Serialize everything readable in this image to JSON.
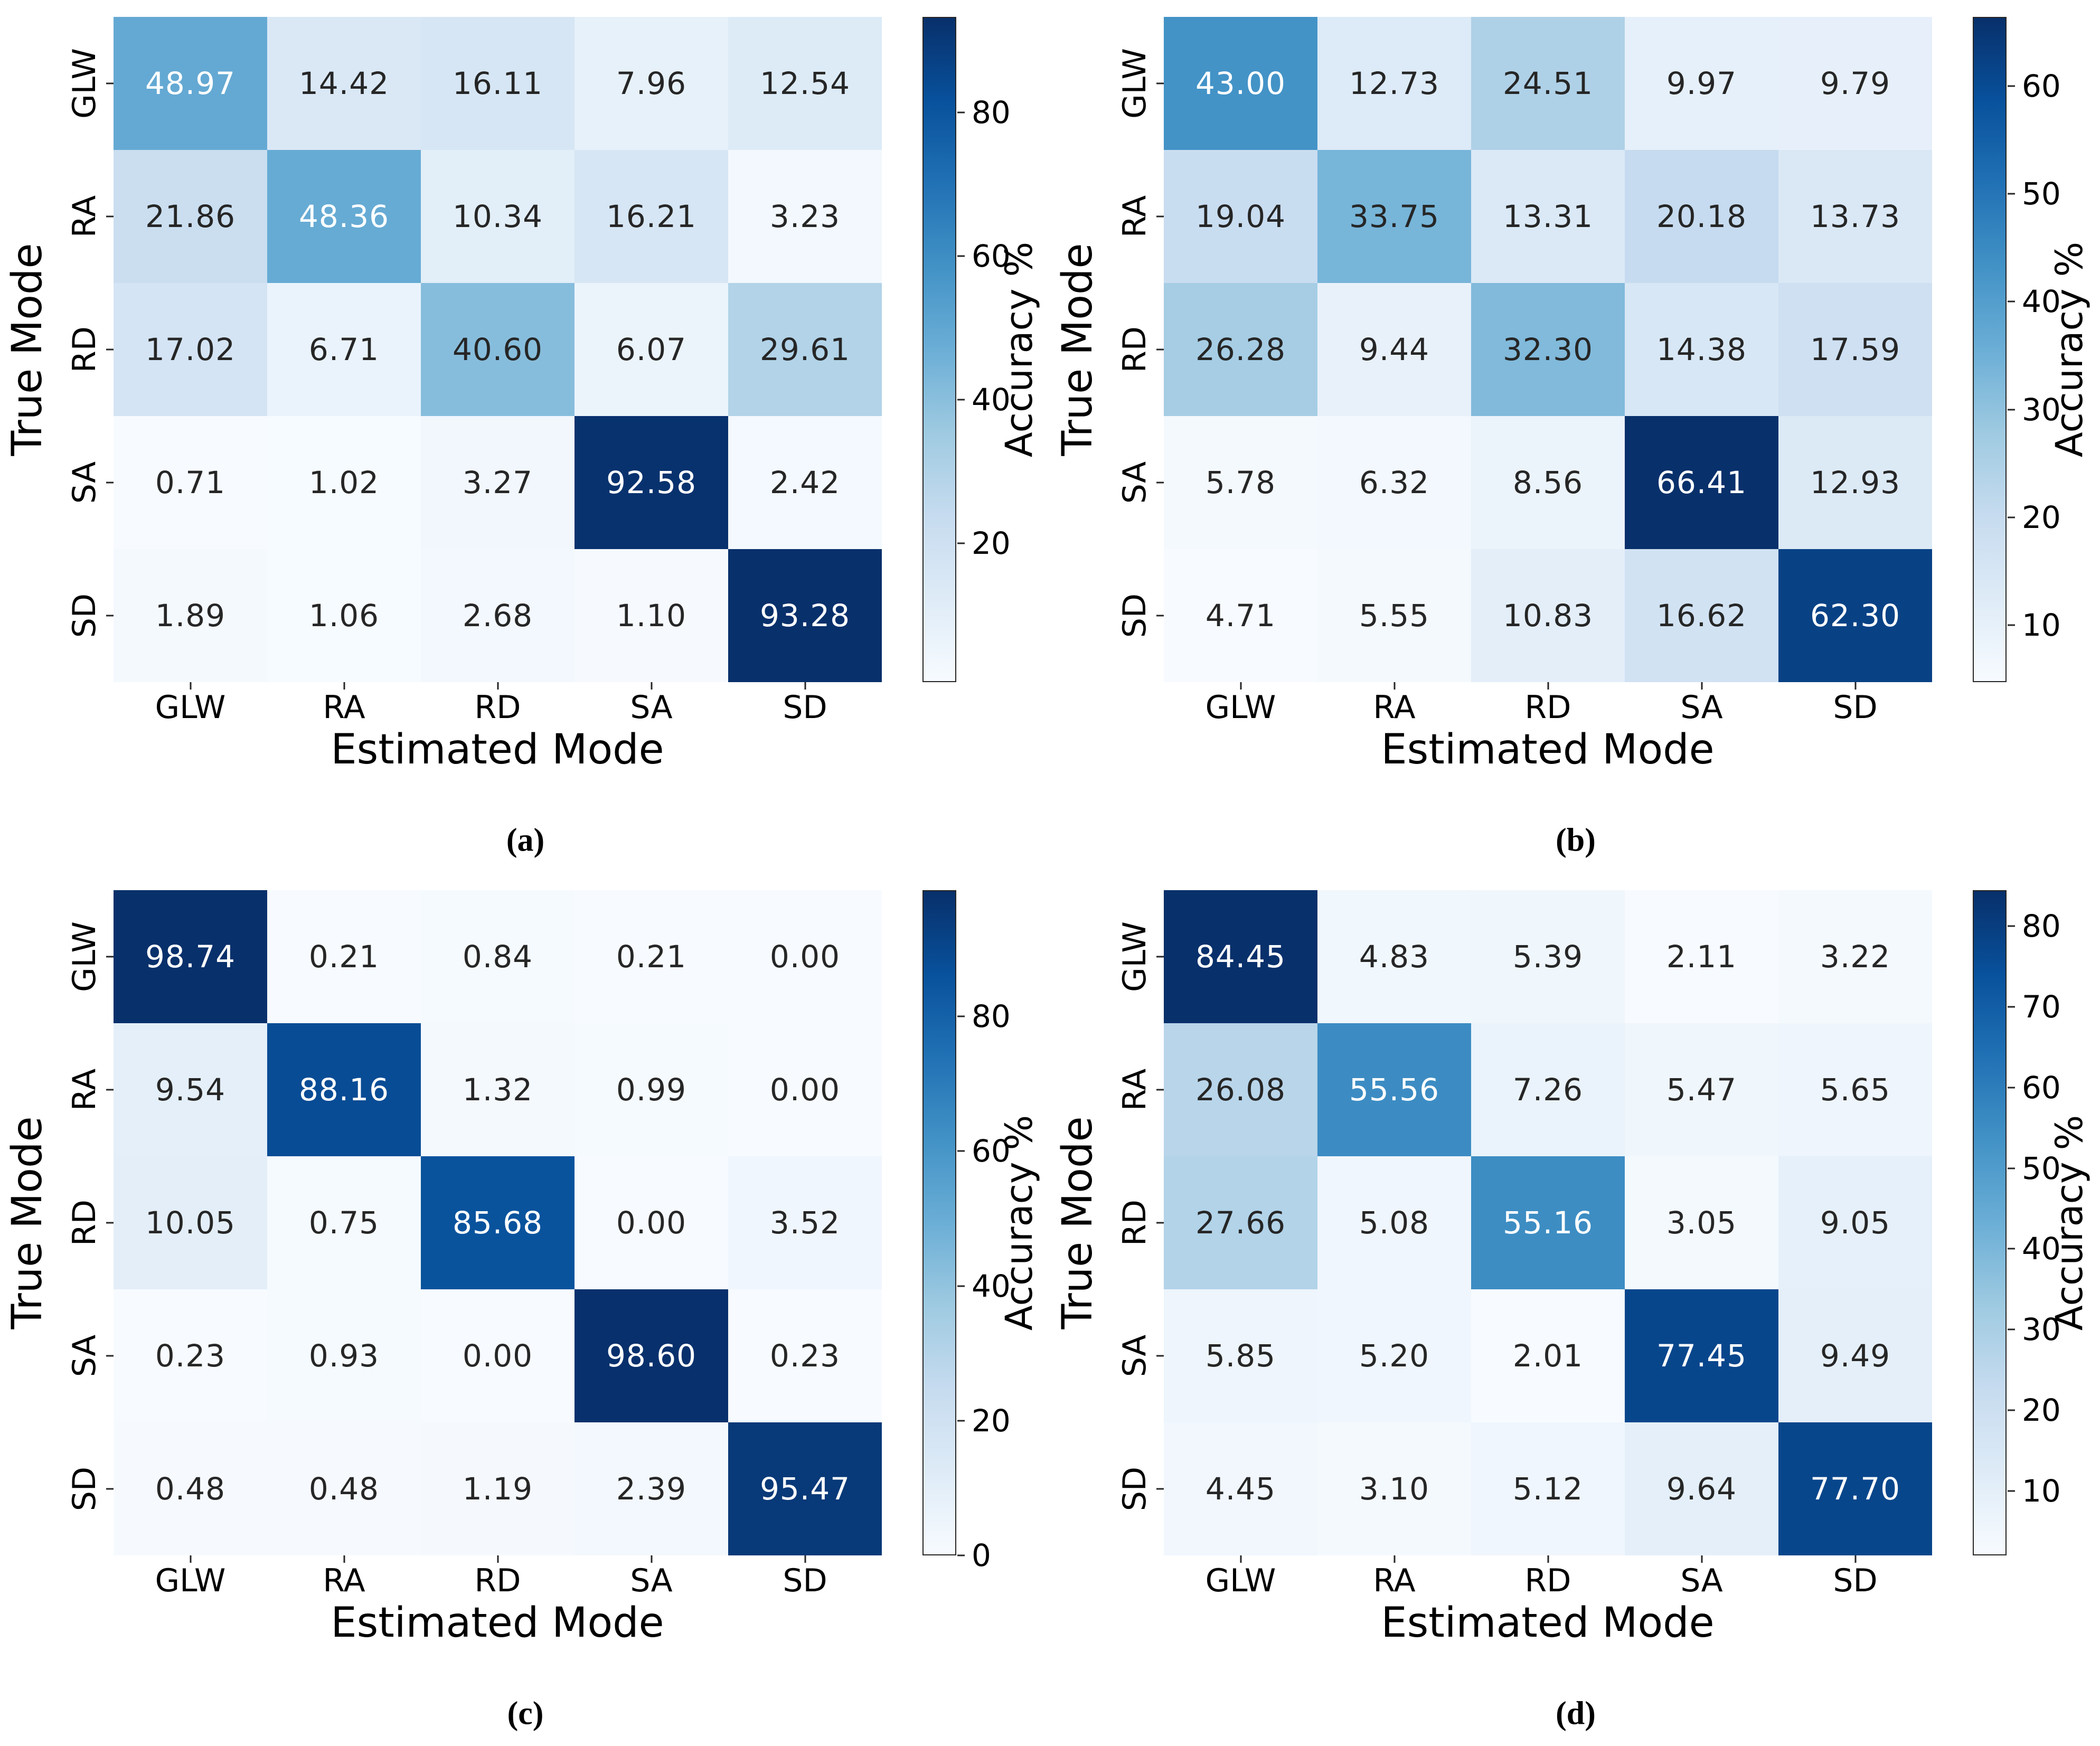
{
  "figure": {
    "xlabel": "Estimated Mode",
    "ylabel": "True Mode",
    "colorbar_label": "Accuracy %"
  },
  "colors": {
    "background": "#ffffff",
    "dark_text": "#262626",
    "light_text": "#ffffff",
    "tick_color": "#262626",
    "blues_anchors": [
      [
        247,
        251,
        255
      ],
      [
        222,
        235,
        247
      ],
      [
        198,
        219,
        239
      ],
      [
        158,
        202,
        225
      ],
      [
        107,
        174,
        214
      ],
      [
        66,
        146,
        198
      ],
      [
        33,
        113,
        181
      ],
      [
        8,
        81,
        156
      ],
      [
        8,
        48,
        107
      ]
    ]
  },
  "chart_data": [
    {
      "type": "heatmap",
      "caption": "(a)",
      "xlabel": "Estimated Mode",
      "ylabel": "True Mode",
      "colorbar_label": "Accuracy %",
      "x_categories": [
        "GLW",
        "RA",
        "RD",
        "SA",
        "SD"
      ],
      "y_categories": [
        "GLW",
        "RA",
        "RD",
        "SA",
        "SD"
      ],
      "values": [
        [
          48.97,
          14.42,
          16.11,
          7.96,
          12.54
        ],
        [
          21.86,
          48.36,
          10.34,
          16.21,
          3.23
        ],
        [
          17.02,
          6.71,
          40.6,
          6.07,
          29.61
        ],
        [
          0.71,
          1.02,
          3.27,
          92.58,
          2.42
        ],
        [
          1.89,
          1.06,
          2.68,
          1.1,
          93.28
        ]
      ],
      "value_range": [
        0.71,
        93.28
      ],
      "colorbar_ticks": [
        80,
        60,
        40,
        20
      ],
      "colormap": "Blues",
      "legend_position": "right"
    },
    {
      "type": "heatmap",
      "caption": "(b)",
      "xlabel": "Estimated Mode",
      "ylabel": "True Mode",
      "colorbar_label": "Accuracy %",
      "x_categories": [
        "GLW",
        "RA",
        "RD",
        "SA",
        "SD"
      ],
      "y_categories": [
        "GLW",
        "RA",
        "RD",
        "SA",
        "SD"
      ],
      "values": [
        [
          43.0,
          12.73,
          24.51,
          9.97,
          9.79
        ],
        [
          19.04,
          33.75,
          13.31,
          20.18,
          13.73
        ],
        [
          26.28,
          9.44,
          32.3,
          14.38,
          17.59
        ],
        [
          5.78,
          6.32,
          8.56,
          66.41,
          12.93
        ],
        [
          4.71,
          5.55,
          10.83,
          16.62,
          62.3
        ]
      ],
      "value_range": [
        4.71,
        66.41
      ],
      "colorbar_ticks": [
        60,
        50,
        40,
        30,
        20,
        10
      ],
      "colormap": "Blues",
      "legend_position": "right"
    },
    {
      "type": "heatmap",
      "caption": "(c)",
      "xlabel": "Estimated Mode",
      "ylabel": "True Mode",
      "colorbar_label": "Accuracy %",
      "x_categories": [
        "GLW",
        "RA",
        "RD",
        "SA",
        "SD"
      ],
      "y_categories": [
        "GLW",
        "RA",
        "RD",
        "SA",
        "SD"
      ],
      "values": [
        [
          98.74,
          0.21,
          0.84,
          0.21,
          0.0
        ],
        [
          9.54,
          88.16,
          1.32,
          0.99,
          0.0
        ],
        [
          10.05,
          0.75,
          85.68,
          0.0,
          3.52
        ],
        [
          0.23,
          0.93,
          0.0,
          98.6,
          0.23
        ],
        [
          0.48,
          0.48,
          1.19,
          2.39,
          95.47
        ]
      ],
      "value_range": [
        0.0,
        98.74
      ],
      "colorbar_ticks": [
        80,
        60,
        40,
        20,
        0
      ],
      "colormap": "Blues",
      "legend_position": "right"
    },
    {
      "type": "heatmap",
      "caption": "(d)",
      "xlabel": "Estimated Mode",
      "ylabel": "True Mode",
      "colorbar_label": "Accuracy %",
      "x_categories": [
        "GLW",
        "RA",
        "RD",
        "SA",
        "SD"
      ],
      "y_categories": [
        "GLW",
        "RA",
        "RD",
        "SA",
        "SD"
      ],
      "values": [
        [
          84.45,
          4.83,
          5.39,
          2.11,
          3.22
        ],
        [
          26.08,
          55.56,
          7.26,
          5.47,
          5.65
        ],
        [
          27.66,
          5.08,
          55.16,
          3.05,
          9.05
        ],
        [
          5.85,
          5.2,
          2.01,
          77.45,
          9.49
        ],
        [
          4.45,
          3.1,
          5.12,
          9.64,
          77.7
        ]
      ],
      "value_range": [
        2.01,
        84.45
      ],
      "colorbar_ticks": [
        80,
        70,
        60,
        50,
        40,
        30,
        20,
        10
      ],
      "colormap": "Blues",
      "legend_position": "right"
    }
  ]
}
